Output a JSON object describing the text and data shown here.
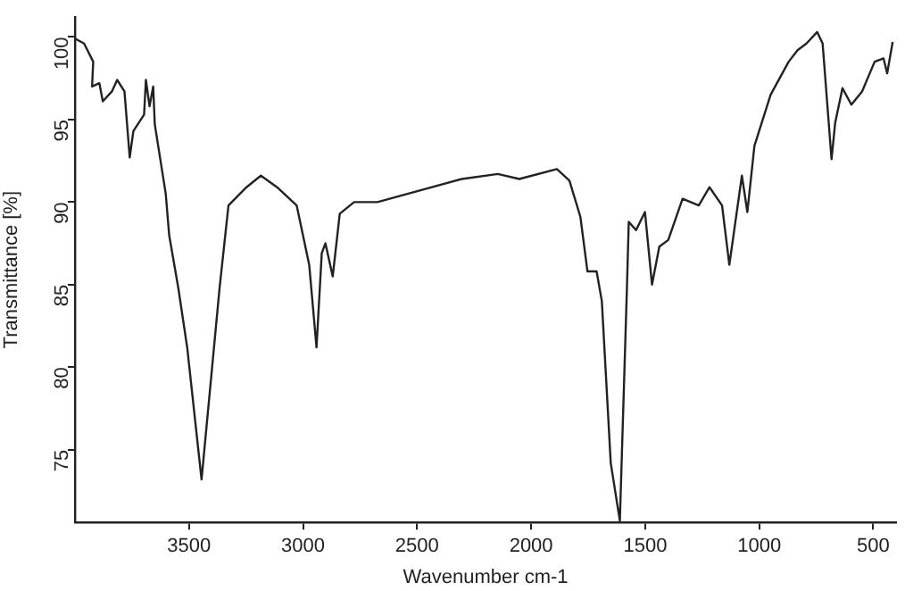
{
  "chart_data": {
    "type": "line",
    "xlabel": "Wavenumber cm-1",
    "ylabel": "Transmittance [%]",
    "xlim": [
      4000,
      400
    ],
    "ylim": [
      70.6,
      101.2
    ],
    "xticks": [
      3500,
      3000,
      2500,
      2000,
      1500,
      1000,
      500
    ],
    "yticks": [
      75,
      80,
      85,
      90,
      95,
      100
    ],
    "grid": false,
    "legend": false,
    "marker": "none",
    "line_style": "solid",
    "series": [
      {
        "color": "#222222",
        "x": [
          4000,
          3960,
          3920,
          3925,
          3893,
          3878,
          3838,
          3815,
          3783,
          3760,
          3744,
          3697,
          3689,
          3673,
          3657,
          3650,
          3602,
          3587,
          3547,
          3508,
          3445,
          3366,
          3327,
          3248,
          3185,
          3114,
          3028,
          2973,
          2941,
          2918,
          2902,
          2870,
          2839,
          2776,
          2674,
          2304,
          2146,
          2052,
          1887,
          1832,
          1784,
          1753,
          1713,
          1690,
          1651,
          1611,
          1580,
          1572,
          1540,
          1501,
          1470,
          1438,
          1399,
          1336,
          1265,
          1218,
          1163,
          1131,
          1076,
          1052,
          1021,
          950,
          871,
          832,
          793,
          746,
          722,
          683,
          667,
          635,
          596,
          549,
          494,
          455,
          439,
          415
        ],
        "values": [
          99.9,
          99.6,
          98.5,
          97.0,
          97.2,
          96.1,
          96.7,
          97.4,
          96.7,
          92.7,
          94.3,
          95.3,
          97.4,
          95.8,
          97.0,
          94.7,
          90.5,
          88.0,
          84.8,
          81.2,
          73.2,
          84.8,
          89.8,
          90.9,
          91.6,
          90.9,
          89.8,
          86.2,
          81.2,
          86.9,
          87.5,
          85.5,
          89.3,
          90.0,
          90.0,
          91.4,
          91.7,
          91.4,
          92.0,
          91.3,
          89.1,
          85.8,
          85.8,
          84.0,
          74.2,
          70.7,
          84.8,
          88.8,
          88.3,
          89.4,
          85.0,
          87.3,
          87.7,
          90.2,
          89.8,
          90.9,
          89.8,
          86.2,
          91.6,
          89.4,
          93.4,
          96.5,
          98.5,
          99.2,
          99.6,
          100.3,
          99.6,
          92.6,
          94.8,
          96.9,
          95.9,
          96.7,
          98.5,
          98.7,
          97.8,
          99.7
        ]
      }
    ]
  }
}
